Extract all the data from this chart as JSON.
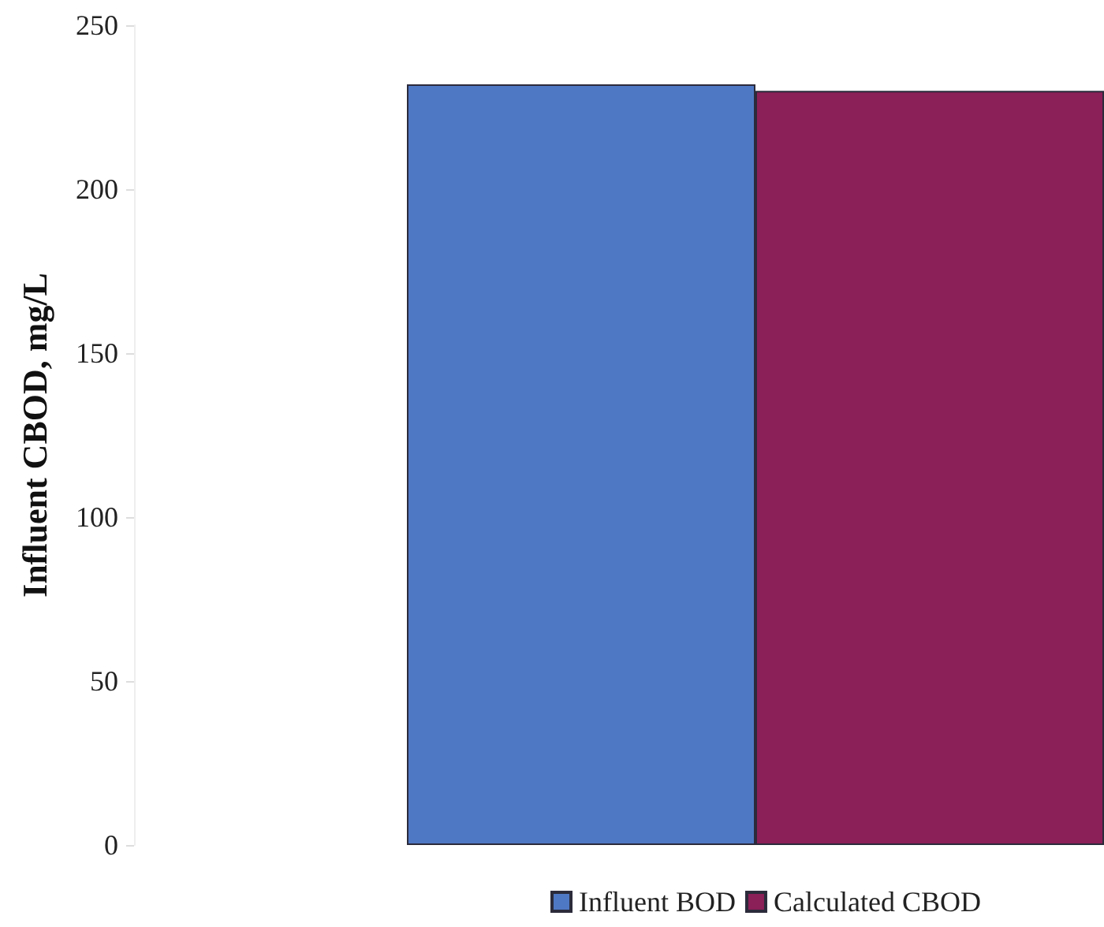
{
  "chart_data": {
    "type": "bar",
    "ylabel": "Influent CBOD, mg/L",
    "categories": [
      null
    ],
    "series": [
      {
        "name": "Influent BOD",
        "color": "#4f78c4",
        "values": [
          232
        ]
      },
      {
        "name": "Calculated CBOD",
        "color": "#8b1f57",
        "values": [
          230
        ]
      }
    ],
    "ylim": [
      0,
      250
    ],
    "yticks": [
      0,
      50,
      100,
      150,
      200,
      250
    ],
    "grid": false,
    "legend": "bottom"
  }
}
